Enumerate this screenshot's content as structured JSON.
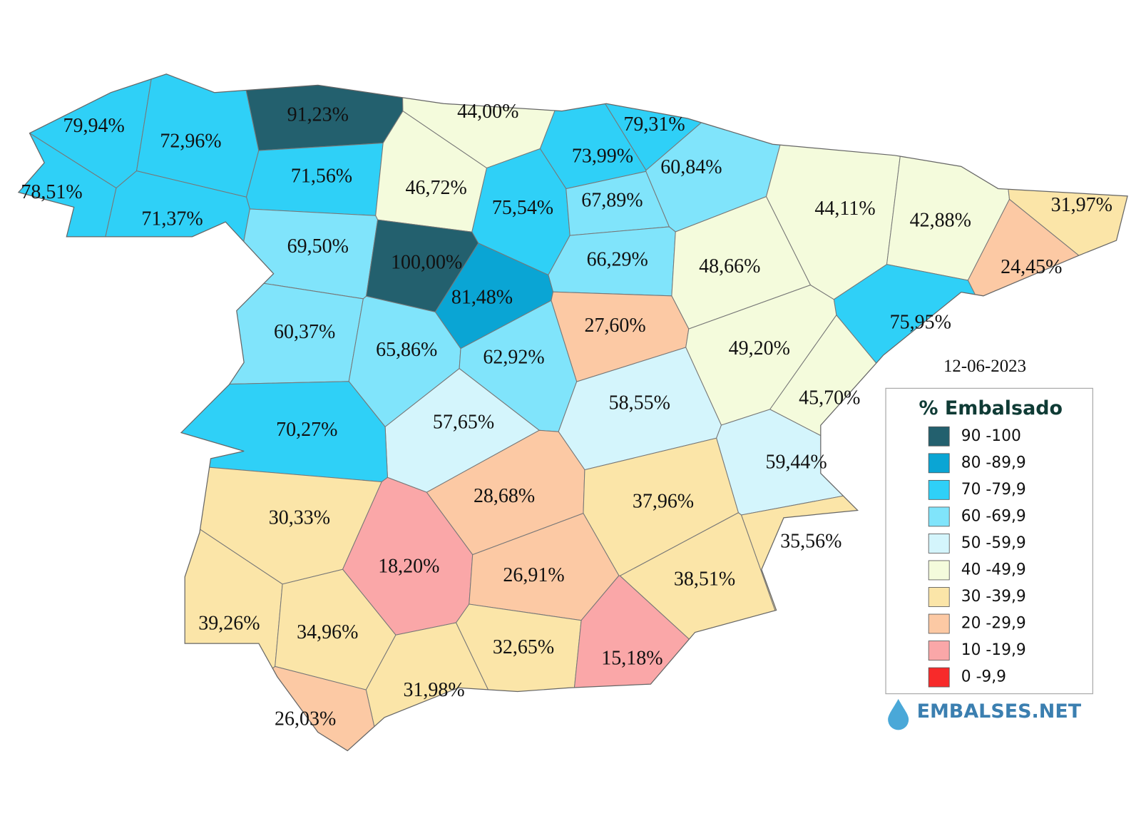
{
  "map": {
    "date": "12-06-2023",
    "legend": {
      "title": "% Embalsado",
      "items": [
        {
          "label": "90 -100",
          "color": "#23606e"
        },
        {
          "label": "80 -89,9",
          "color": "#0aa5d4"
        },
        {
          "label": "70 -79,9",
          "color": "#2fd0f7"
        },
        {
          "label": "60 -69,9",
          "color": "#80e4fb"
        },
        {
          "label": "50 -59,9",
          "color": "#d4f5fc"
        },
        {
          "label": "40 -49,9",
          "color": "#f4fbdc"
        },
        {
          "label": "30 -39,9",
          "color": "#fbe5a8"
        },
        {
          "label": "20 -29,9",
          "color": "#fcc9a4"
        },
        {
          "label": "10 -19,9",
          "color": "#faa7a8"
        },
        {
          "label": "0 -9,9",
          "color": "#f72a2a"
        }
      ]
    },
    "brand": "EMBALSES.NET",
    "regions": [
      {
        "label": "79,94%",
        "color": "#2fd0f7"
      },
      {
        "label": "72,96%",
        "color": "#2fd0f7"
      },
      {
        "label": "91,23%",
        "color": "#23606e"
      },
      {
        "label": "44,00%",
        "color": "#f4fbdc"
      },
      {
        "label": "79,31%",
        "color": "#2fd0f7"
      },
      {
        "label": "78,51%",
        "color": "#2fd0f7"
      },
      {
        "label": "71,56%",
        "color": "#2fd0f7"
      },
      {
        "label": "46,72%",
        "color": "#f4fbdc"
      },
      {
        "label": "73,99%",
        "color": "#2fd0f7"
      },
      {
        "label": "60,84%",
        "color": "#80e4fb"
      },
      {
        "label": "71,37%",
        "color": "#2fd0f7"
      },
      {
        "label": "75,54%",
        "color": "#2fd0f7"
      },
      {
        "label": "67,89%",
        "color": "#80e4fb"
      },
      {
        "label": "44,11%",
        "color": "#f4fbdc"
      },
      {
        "label": "42,88%",
        "color": "#f4fbdc"
      },
      {
        "label": "31,97%",
        "color": "#fbe5a8"
      },
      {
        "label": "69,50%",
        "color": "#80e4fb"
      },
      {
        "label": "100,00%",
        "color": "#23606e"
      },
      {
        "label": "66,29%",
        "color": "#80e4fb"
      },
      {
        "label": "48,66%",
        "color": "#f4fbdc"
      },
      {
        "label": "24,45%",
        "color": "#fcc9a4"
      },
      {
        "label": "81,48%",
        "color": "#0aa5d4"
      },
      {
        "label": "27,60%",
        "color": "#fcc9a4"
      },
      {
        "label": "75,95%",
        "color": "#2fd0f7"
      },
      {
        "label": "60,37%",
        "color": "#80e4fb"
      },
      {
        "label": "65,86%",
        "color": "#80e4fb"
      },
      {
        "label": "62,92%",
        "color": "#80e4fb"
      },
      {
        "label": "49,20%",
        "color": "#f4fbdc"
      },
      {
        "label": "45,70%",
        "color": "#f4fbdc"
      },
      {
        "label": "58,55%",
        "color": "#d4f5fc"
      },
      {
        "label": "57,65%",
        "color": "#d4f5fc"
      },
      {
        "label": "70,27%",
        "color": "#2fd0f7"
      },
      {
        "label": "59,44%",
        "color": "#d4f5fc"
      },
      {
        "label": "28,68%",
        "color": "#fcc9a4"
      },
      {
        "label": "37,96%",
        "color": "#fbe5a8"
      },
      {
        "label": "30,33%",
        "color": "#fbe5a8"
      },
      {
        "label": "35,56%",
        "color": "#fbe5a8"
      },
      {
        "label": "18,20%",
        "color": "#faa7a8"
      },
      {
        "label": "26,91%",
        "color": "#fcc9a4"
      },
      {
        "label": "38,51%",
        "color": "#fbe5a8"
      },
      {
        "label": "39,26%",
        "color": "#fbe5a8"
      },
      {
        "label": "34,96%",
        "color": "#fbe5a8"
      },
      {
        "label": "32,65%",
        "color": "#fbe5a8"
      },
      {
        "label": "15,18%",
        "color": "#faa7a8"
      },
      {
        "label": "31,98%",
        "color": "#fbe5a8"
      },
      {
        "label": "26,03%",
        "color": "#fcc9a4"
      }
    ]
  }
}
